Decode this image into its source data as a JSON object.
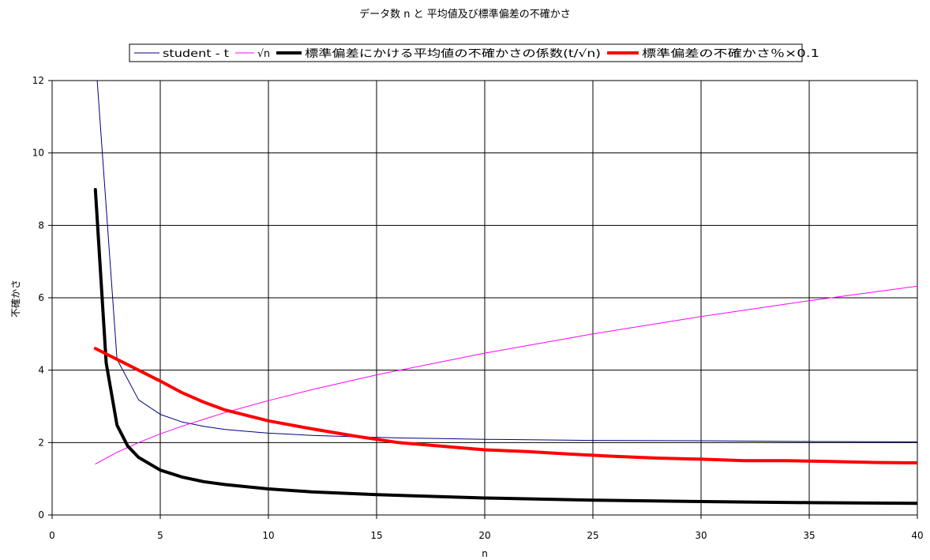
{
  "chart_data": {
    "type": "line",
    "title": "データ数 n と 平均値及び標準偏差の不確かさ",
    "xlabel": "n",
    "ylabel": "不確かさ",
    "xlim": [
      0,
      40
    ],
    "ylim": [
      0,
      12
    ],
    "x_ticks": [
      "0",
      "5",
      "10",
      "15",
      "20",
      "25",
      "30",
      "35",
      "40"
    ],
    "y_ticks": [
      "0",
      "2",
      "4",
      "6",
      "8",
      "10",
      "12"
    ],
    "grid": true,
    "legend_position": "top",
    "series": [
      {
        "name": "student - t",
        "color": "#000080",
        "x": [
          2,
          3,
          4,
          5,
          6,
          7,
          8,
          9,
          10,
          12,
          14,
          16,
          18,
          20,
          25,
          30,
          35,
          40
        ],
        "y": [
          12.71,
          4.3,
          3.18,
          2.78,
          2.57,
          2.45,
          2.36,
          2.31,
          2.26,
          2.2,
          2.16,
          2.13,
          2.11,
          2.09,
          2.06,
          2.05,
          2.03,
          2.02
        ]
      },
      {
        "name": "√n",
        "color": "#ff00ff",
        "x": [
          2,
          3,
          4,
          5,
          6,
          8,
          10,
          12,
          15,
          20,
          25,
          30,
          35,
          40
        ],
        "y": [
          1.41,
          1.73,
          2.0,
          2.24,
          2.45,
          2.83,
          3.16,
          3.46,
          3.87,
          4.47,
          5.0,
          5.48,
          5.92,
          6.32
        ]
      },
      {
        "name": "標準偏差にかける平均値の不確かさの係数(t/√n)",
        "color": "#000000",
        "x": [
          2,
          2.5,
          3,
          3.5,
          4,
          5,
          6,
          7,
          8,
          10,
          12,
          15,
          20,
          25,
          30,
          35,
          40
        ],
        "y": [
          8.99,
          4.2,
          2.48,
          1.9,
          1.59,
          1.24,
          1.05,
          0.92,
          0.84,
          0.72,
          0.64,
          0.56,
          0.47,
          0.41,
          0.37,
          0.34,
          0.32
        ]
      },
      {
        "name": "標準偏差の不確かさ％×0.1",
        "color": "#ff0000",
        "x": [
          2,
          3,
          4,
          5,
          6,
          7,
          8,
          10,
          12,
          14,
          16,
          18,
          20,
          22,
          24,
          26,
          28,
          30,
          32,
          34,
          36,
          38,
          40
        ],
        "y": [
          4.6,
          4.3,
          4.0,
          3.7,
          3.38,
          3.12,
          2.9,
          2.6,
          2.38,
          2.18,
          2.0,
          1.9,
          1.8,
          1.75,
          1.68,
          1.62,
          1.57,
          1.54,
          1.5,
          1.5,
          1.48,
          1.45,
          1.44
        ]
      }
    ]
  }
}
